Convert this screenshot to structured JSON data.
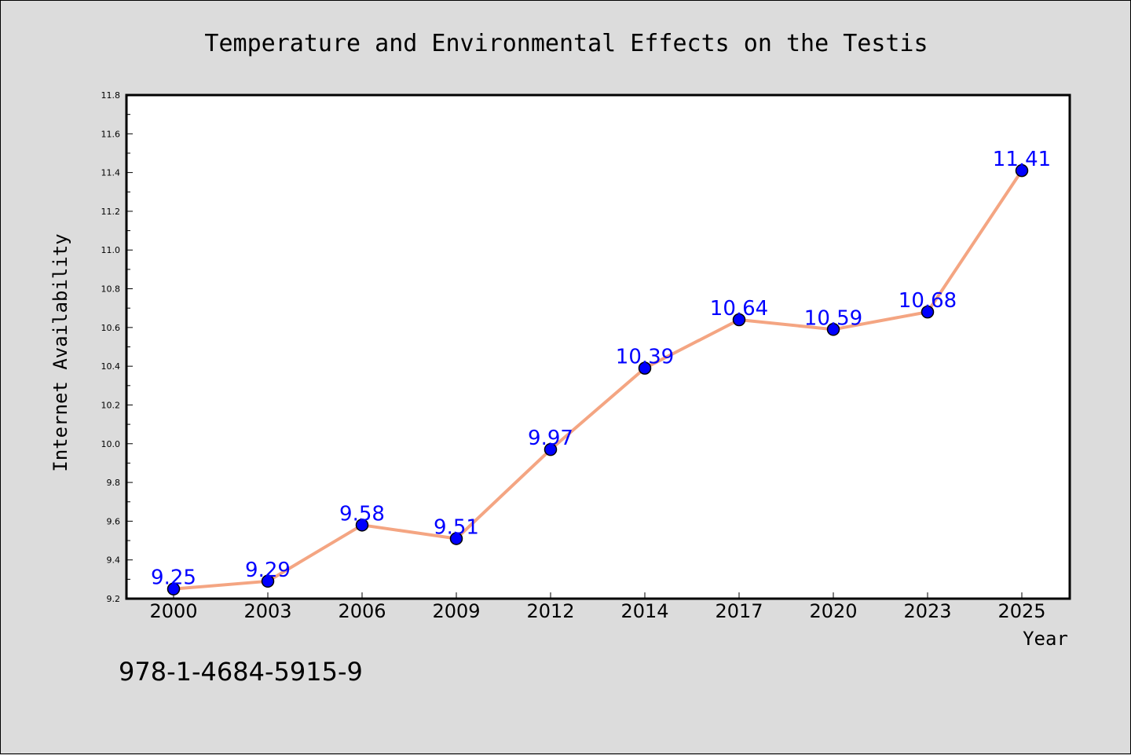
{
  "colors": {
    "background": "#dcdcdc",
    "plot_background": "#ffffff",
    "line": "#f4a582",
    "marker": "#0000ff",
    "data_label": "#0000ff"
  },
  "footer": {
    "isbn": "978-1-4684-5915-9"
  },
  "chart_data": {
    "type": "line",
    "title": "Temperature and Environmental Effects on the Testis",
    "xlabel": "Year",
    "ylabel": "Internet Availability",
    "categories": [
      "2000",
      "2003",
      "2006",
      "2009",
      "2012",
      "2014",
      "2017",
      "2020",
      "2023",
      "2025"
    ],
    "series": [
      {
        "values": [
          9.25,
          9.29,
          9.58,
          9.51,
          9.97,
          10.39,
          10.64,
          10.59,
          10.68,
          11.41
        ],
        "labels": [
          "9.25",
          "9.29",
          "9.58",
          "9.51",
          "9.97",
          "10.39",
          "10.64",
          "10.59",
          "10.68",
          "11.41"
        ]
      }
    ],
    "ylim": [
      9.2,
      11.8
    ],
    "yticks": [
      "9.2",
      "9.4",
      "9.6",
      "9.8",
      "10.0",
      "10.2",
      "10.4",
      "10.6",
      "10.8",
      "11.0",
      "11.2",
      "11.4",
      "11.6",
      "11.8"
    ],
    "grid": false,
    "legend": "none"
  }
}
